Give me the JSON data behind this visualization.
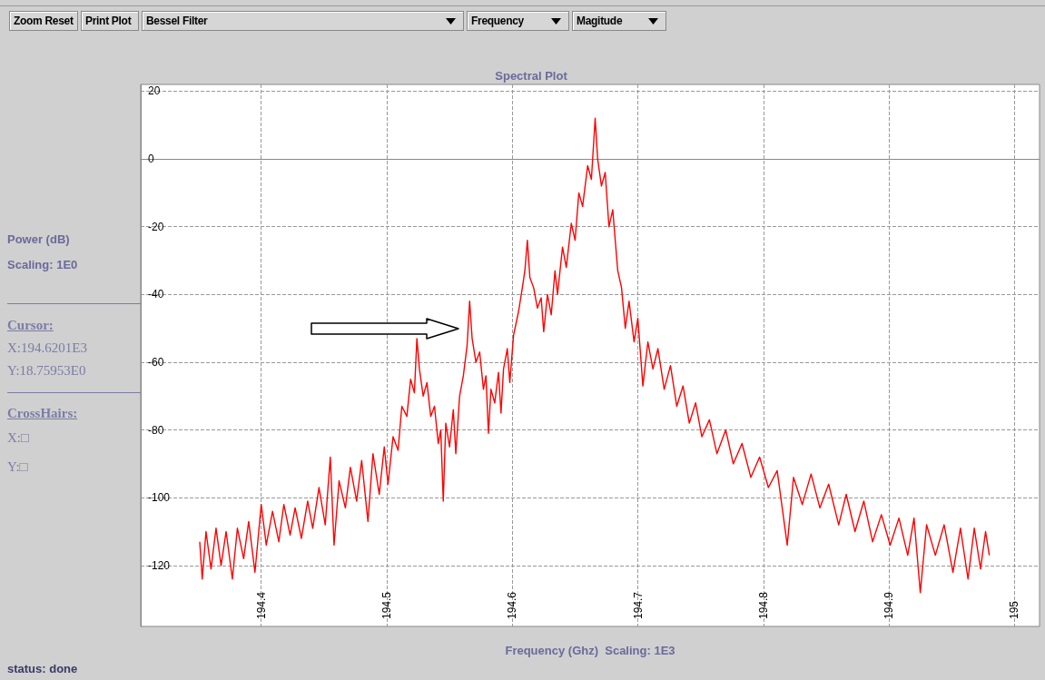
{
  "chart_data": {
    "type": "line",
    "title": "Spectral Plot",
    "xlabel": "Frequency (Ghz)  Scaling: 1E3",
    "annotations": [
      "Zoom Reset",
      "Print Plot",
      "Bessel Filter",
      "Frequency",
      "Magitude",
      "Power (dB)",
      "Scaling: 1E0",
      "Cursor:",
      "X:194.6201E3",
      "Y:18.75953E0",
      "CrossHairs:",
      "X:□",
      "Y:□",
      "status: done"
    ],
    "xlim": [
      194.304,
      195.02
    ],
    "xticks": [
      194.4,
      194.5,
      194.6,
      194.7,
      194.8,
      194.9,
      195
    ],
    "ylim": [
      -138,
      22
    ],
    "yticks": [
      20,
      0,
      -20,
      -40,
      -60,
      -80,
      -100,
      -120
    ],
    "grid": true,
    "marker": "none",
    "line_style": "solid",
    "series": [
      {
        "color": "#ff0000",
        "x": [
          194.351,
          194.353,
          194.356,
          194.36,
          194.364,
          194.368,
          194.372,
          194.377,
          194.381,
          194.386,
          194.39,
          194.395,
          194.4,
          194.404,
          194.409,
          194.414,
          194.418,
          194.423,
          194.427,
          194.432,
          194.437,
          194.441,
          194.446,
          194.451,
          194.455,
          194.458,
          194.462,
          194.467,
          194.471,
          194.476,
          194.48,
          194.485,
          194.489,
          194.494,
          194.498,
          194.501,
          194.505,
          194.509,
          194.512,
          194.516,
          194.519,
          194.522,
          194.524,
          194.526,
          194.529,
          194.532,
          194.535,
          194.538,
          194.541,
          194.543,
          194.545,
          194.547,
          194.55,
          194.553,
          194.555,
          194.558,
          194.561,
          194.564,
          194.566,
          194.568,
          194.571,
          194.574,
          194.577,
          194.579,
          194.581,
          194.583,
          194.586,
          194.589,
          194.591,
          194.593,
          194.596,
          194.598,
          194.601,
          194.605,
          194.608,
          194.61,
          194.612,
          194.614,
          194.617,
          194.62,
          194.623,
          194.625,
          194.628,
          194.631,
          194.634,
          194.636,
          194.64,
          194.643,
          194.647,
          194.65,
          194.653,
          194.656,
          194.66,
          194.663,
          194.666,
          194.668,
          194.671,
          194.674,
          194.677,
          194.68,
          194.684,
          194.687,
          194.69,
          194.693,
          194.697,
          194.7,
          194.704,
          194.708,
          194.712,
          194.716,
          194.721,
          194.726,
          194.731,
          194.736,
          194.741,
          194.746,
          194.751,
          194.757,
          194.763,
          194.77,
          194.776,
          194.783,
          194.79,
          194.797,
          194.804,
          194.811,
          194.819,
          194.824,
          194.831,
          194.838,
          194.845,
          194.852,
          194.86,
          194.866,
          194.873,
          194.88,
          194.887,
          194.894,
          194.901,
          194.908,
          194.915,
          194.92,
          194.925,
          194.93,
          194.937,
          194.944,
          194.951,
          194.957,
          194.963,
          194.968,
          194.973,
          194.977,
          194.98
        ],
        "values": [
          -113,
          -124,
          -110,
          -121,
          -109,
          -120,
          -110,
          -124,
          -109,
          -118,
          -107,
          -122,
          -102,
          -114,
          -104,
          -113,
          -102,
          -111,
          -103,
          -112,
          -101,
          -109,
          -97,
          -108,
          -88,
          -114,
          -95,
          -103,
          -91,
          -101,
          -89,
          -107,
          -87,
          -99,
          -85,
          -96,
          -82,
          -86,
          -73,
          -76,
          -65,
          -69,
          -53,
          -62,
          -70,
          -66,
          -76,
          -73,
          -84,
          -80,
          -101,
          -78,
          -85,
          -74,
          -87,
          -70,
          -64,
          -55,
          -42,
          -53,
          -60,
          -57,
          -68,
          -64,
          -81,
          -68,
          -72,
          -63,
          -75,
          -62,
          -56,
          -66,
          -52,
          -45,
          -38,
          -33,
          -24,
          -35,
          -38,
          -44,
          -41,
          -51,
          -40,
          -46,
          -33,
          -40,
          -26,
          -32,
          -19,
          -24,
          -10,
          -14,
          -2,
          -6,
          12,
          0,
          -8,
          -4,
          -20,
          -15,
          -33,
          -38,
          -50,
          -42,
          -54,
          -47,
          -67,
          -54,
          -62,
          -56,
          -68,
          -61,
          -73,
          -67,
          -78,
          -72,
          -82,
          -77,
          -87,
          -80,
          -90,
          -84,
          -94,
          -88,
          -97,
          -92,
          -114,
          -94,
          -102,
          -93,
          -103,
          -96,
          -108,
          -99,
          -110,
          -101,
          -113,
          -105,
          -114,
          -106,
          -117,
          -106,
          -128,
          -108,
          -117,
          -108,
          -122,
          -109,
          -124,
          -109,
          -121,
          -110,
          -117
        ]
      }
    ]
  }
}
